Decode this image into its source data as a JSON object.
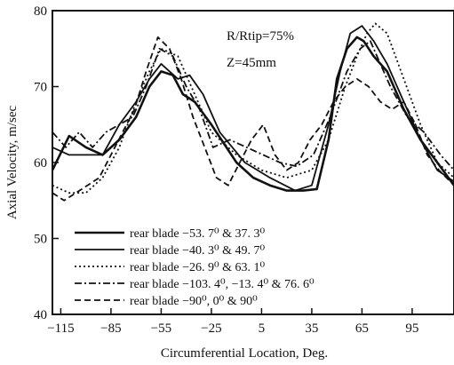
{
  "chart_data": {
    "type": "line",
    "xlabel": "Circumferential Location, Deg.",
    "ylabel": "Axial Velocity,  m/sec",
    "xlim": [
      -120,
      120
    ],
    "ylim": [
      40,
      80
    ],
    "xticks": [
      -115,
      -85,
      -55,
      -25,
      5,
      35,
      65,
      95
    ],
    "yticks": [
      40,
      50,
      60,
      70,
      80
    ],
    "annotations": [
      "R/Rtip=75%",
      "Z=45mm"
    ],
    "legend_position": "lower-left",
    "series": [
      {
        "name": "rear blade  −53. 7⁰ & 37. 3⁰",
        "style": "solid-thick",
        "x": [
          -120,
          -110,
          -100,
          -90,
          -80,
          -70,
          -62,
          -55,
          -48,
          -42,
          -35,
          -25,
          -10,
          0,
          10,
          20,
          30,
          38,
          45,
          50,
          56,
          62,
          66,
          72,
          80,
          90,
          100,
          110,
          120
        ],
        "y": [
          59,
          63.5,
          62,
          61,
          63,
          66,
          70,
          72,
          71.5,
          69,
          68,
          65,
          60,
          58,
          57,
          56.3,
          56.3,
          56.5,
          63,
          71,
          75,
          76.5,
          76,
          74,
          72,
          67,
          63,
          60,
          57
        ]
      },
      {
        "name": "rear blade  −40. 3⁰  &  49. 7⁰",
        "style": "solid",
        "x": [
          -120,
          -110,
          -100,
          -90,
          -80,
          -70,
          -62,
          -55,
          -45,
          -38,
          -30,
          -20,
          -5,
          10,
          25,
          35,
          45,
          52,
          58,
          65,
          72,
          80,
          90,
          100,
          110,
          120
        ],
        "y": [
          62,
          61,
          61,
          61,
          65,
          68,
          71,
          73,
          71,
          71.5,
          69,
          64,
          60,
          58,
          56.3,
          57,
          65,
          72,
          77,
          78,
          76,
          73,
          68,
          63,
          59,
          57.5
        ]
      },
      {
        "name": "rear blade  −26. 9⁰  &  63. 1⁰",
        "style": "dotted",
        "x": [
          -120,
          -110,
          -100,
          -90,
          -80,
          -70,
          -62,
          -55,
          -45,
          -35,
          -25,
          -10,
          5,
          20,
          35,
          45,
          55,
          62,
          68,
          73,
          80,
          90,
          100,
          110,
          120
        ],
        "y": [
          57,
          56,
          56,
          58,
          62,
          68,
          72,
          75,
          74,
          69,
          64,
          61,
          59,
          58,
          59,
          63,
          70,
          74,
          77,
          78.3,
          77,
          71,
          65,
          60,
          58
        ]
      },
      {
        "name": "rear blade  −103. 4⁰,  −13. 4⁰  &  76. 6⁰",
        "style": "dash-dot",
        "x": [
          -120,
          -112,
          -104,
          -96,
          -88,
          -80,
          -72,
          -64,
          -56,
          -48,
          -40,
          -32,
          -24,
          -14,
          -4,
          6,
          16,
          26,
          36,
          46,
          56,
          64,
          70,
          76,
          82,
          92,
          102,
          112,
          120
        ],
        "y": [
          64,
          62,
          64,
          62,
          64,
          65,
          66,
          70,
          75,
          74,
          70,
          67,
          62,
          63,
          62,
          61,
          60,
          59.5,
          61,
          66,
          72,
          75,
          76,
          73,
          70,
          66,
          64,
          61,
          59
        ]
      },
      {
        "name": "rear blade  −90⁰,  0⁰  &  90⁰",
        "style": "dashed",
        "x": [
          -120,
          -113,
          -106,
          -99,
          -92,
          -85,
          -78,
          -71,
          -64,
          -57,
          -50,
          -43,
          -36,
          -29,
          -22,
          -15,
          -8,
          -1,
          6,
          13,
          20,
          27,
          34,
          41,
          48,
          55,
          62,
          69,
          76,
          83,
          90,
          97,
          104,
          111,
          120
        ],
        "y": [
          56,
          55,
          56,
          57,
          58,
          61,
          64,
          67,
          72,
          76.5,
          75,
          71,
          66,
          62,
          58,
          57,
          60,
          63,
          65,
          61,
          59,
          60,
          63,
          65,
          68,
          70,
          71,
          70,
          68,
          67,
          68,
          65,
          61,
          59,
          57
        ]
      }
    ]
  }
}
